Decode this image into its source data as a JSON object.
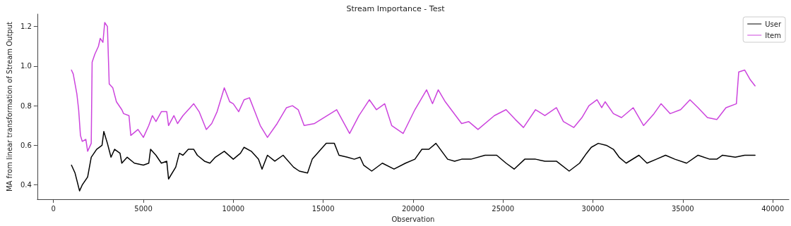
{
  "chart_data": {
    "type": "line",
    "title": "Stream Importance - Test",
    "xlabel": "Observation",
    "ylabel": "MA from linear transformation of Stream Output",
    "xlim": [
      -900,
      40900
    ],
    "xticks": [
      0,
      5000,
      10000,
      15000,
      20000,
      25000,
      30000,
      35000,
      40000
    ],
    "ylim": [
      0.3275,
      1.2625
    ],
    "yticks": [
      {
        "value": 0.4,
        "label": "0.4"
      },
      {
        "value": 0.6,
        "label": "0.6"
      },
      {
        "value": 0.8,
        "label": "0.8"
      },
      {
        "value": 1,
        "label": "1.0"
      },
      {
        "value": 1.2,
        "label": "1.2"
      }
    ],
    "grid": false,
    "legend": "top right",
    "marker": "none",
    "line_style": "solid",
    "series": [
      {
        "name": "User",
        "color": "#000000",
        "x": [
          1000,
          1200,
          1450,
          1600,
          1900,
          2100,
          2400,
          2700,
          2800,
          3000,
          3200,
          3400,
          3700,
          3800,
          4100,
          4500,
          5000,
          5300,
          5400,
          5700,
          6000,
          6300,
          6400,
          6800,
          7000,
          7200,
          7500,
          7800,
          8000,
          8400,
          8700,
          9000,
          9500,
          10000,
          10400,
          10600,
          11000,
          11400,
          11600,
          11900,
          12310,
          12770,
          13350,
          13670,
          14130,
          14390,
          14780,
          15170,
          15620,
          15880,
          16340,
          16730,
          17050,
          17250,
          17700,
          18290,
          18940,
          19580,
          20100,
          20490,
          20880,
          21270,
          21920,
          22310,
          22700,
          23220,
          24000,
          24650,
          25170,
          25620,
          26210,
          26810,
          27330,
          27970,
          28680,
          29260,
          29650,
          29910,
          30300,
          30750,
          31140,
          31460,
          31850,
          32560,
          33010,
          33530,
          34040,
          34560,
          35210,
          35850,
          36500,
          36890,
          37210,
          37920,
          38440,
          39020
        ],
        "values": [
          0.5,
          0.46,
          0.37,
          0.4,
          0.44,
          0.54,
          0.58,
          0.6,
          0.67,
          0.61,
          0.54,
          0.58,
          0.56,
          0.51,
          0.54,
          0.51,
          0.5,
          0.51,
          0.58,
          0.55,
          0.51,
          0.52,
          0.43,
          0.49,
          0.56,
          0.55,
          0.58,
          0.58,
          0.55,
          0.52,
          0.51,
          0.54,
          0.57,
          0.53,
          0.56,
          0.59,
          0.57,
          0.53,
          0.48,
          0.55,
          0.52,
          0.55,
          0.49,
          0.47,
          0.46,
          0.53,
          0.57,
          0.61,
          0.61,
          0.55,
          0.54,
          0.53,
          0.54,
          0.5,
          0.47,
          0.51,
          0.48,
          0.51,
          0.53,
          0.58,
          0.58,
          0.61,
          0.53,
          0.52,
          0.53,
          0.53,
          0.55,
          0.55,
          0.51,
          0.48,
          0.53,
          0.53,
          0.52,
          0.52,
          0.47,
          0.51,
          0.56,
          0.59,
          0.61,
          0.6,
          0.58,
          0.54,
          0.51,
          0.55,
          0.51,
          0.53,
          0.55,
          0.53,
          0.51,
          0.55,
          0.53,
          0.53,
          0.55,
          0.54,
          0.55,
          0.55
        ]
      },
      {
        "name": "Item",
        "color": "#cc44dd",
        "x": [
          1000,
          1100,
          1300,
          1400,
          1500,
          1600,
          1800,
          1900,
          2100,
          2150,
          2300,
          2500,
          2600,
          2750,
          2850,
          3000,
          3100,
          3300,
          3500,
          3800,
          3900,
          4200,
          4300,
          4700,
          5000,
          5300,
          5500,
          5700,
          6000,
          6300,
          6400,
          6700,
          6900,
          7200,
          7600,
          7800,
          8100,
          8500,
          8800,
          9100,
          9500,
          9800,
          10000,
          10300,
          10600,
          10900,
          11200,
          11500,
          11900,
          12440,
          12960,
          13290,
          13610,
          13940,
          14520,
          15040,
          15750,
          16470,
          16990,
          17570,
          17960,
          18420,
          18810,
          19450,
          20100,
          20750,
          21080,
          21400,
          21790,
          22700,
          23090,
          23610,
          24520,
          25170,
          25690,
          26140,
          26810,
          27330,
          27970,
          28360,
          28940,
          29390,
          29780,
          30230,
          30490,
          30680,
          31140,
          31590,
          32240,
          32820,
          33400,
          33790,
          34300,
          34880,
          35400,
          35850,
          36370,
          36890,
          37400,
          37980,
          38110,
          38440,
          38760,
          39020
        ],
        "values": [
          0.98,
          0.96,
          0.86,
          0.78,
          0.65,
          0.62,
          0.63,
          0.57,
          0.61,
          1.02,
          1.06,
          1.1,
          1.14,
          1.12,
          1.22,
          1.2,
          0.91,
          0.89,
          0.82,
          0.78,
          0.76,
          0.75,
          0.65,
          0.68,
          0.64,
          0.7,
          0.75,
          0.72,
          0.77,
          0.77,
          0.7,
          0.75,
          0.71,
          0.75,
          0.79,
          0.81,
          0.77,
          0.68,
          0.71,
          0.77,
          0.89,
          0.82,
          0.81,
          0.77,
          0.83,
          0.84,
          0.77,
          0.7,
          0.64,
          0.71,
          0.79,
          0.8,
          0.78,
          0.7,
          0.71,
          0.74,
          0.78,
          0.66,
          0.75,
          0.83,
          0.78,
          0.81,
          0.7,
          0.66,
          0.78,
          0.88,
          0.81,
          0.88,
          0.82,
          0.71,
          0.72,
          0.68,
          0.75,
          0.78,
          0.73,
          0.69,
          0.78,
          0.75,
          0.79,
          0.72,
          0.69,
          0.74,
          0.8,
          0.83,
          0.79,
          0.82,
          0.76,
          0.74,
          0.79,
          0.7,
          0.76,
          0.81,
          0.76,
          0.78,
          0.83,
          0.79,
          0.74,
          0.73,
          0.79,
          0.81,
          0.97,
          0.98,
          0.93,
          0.9
        ]
      }
    ]
  }
}
